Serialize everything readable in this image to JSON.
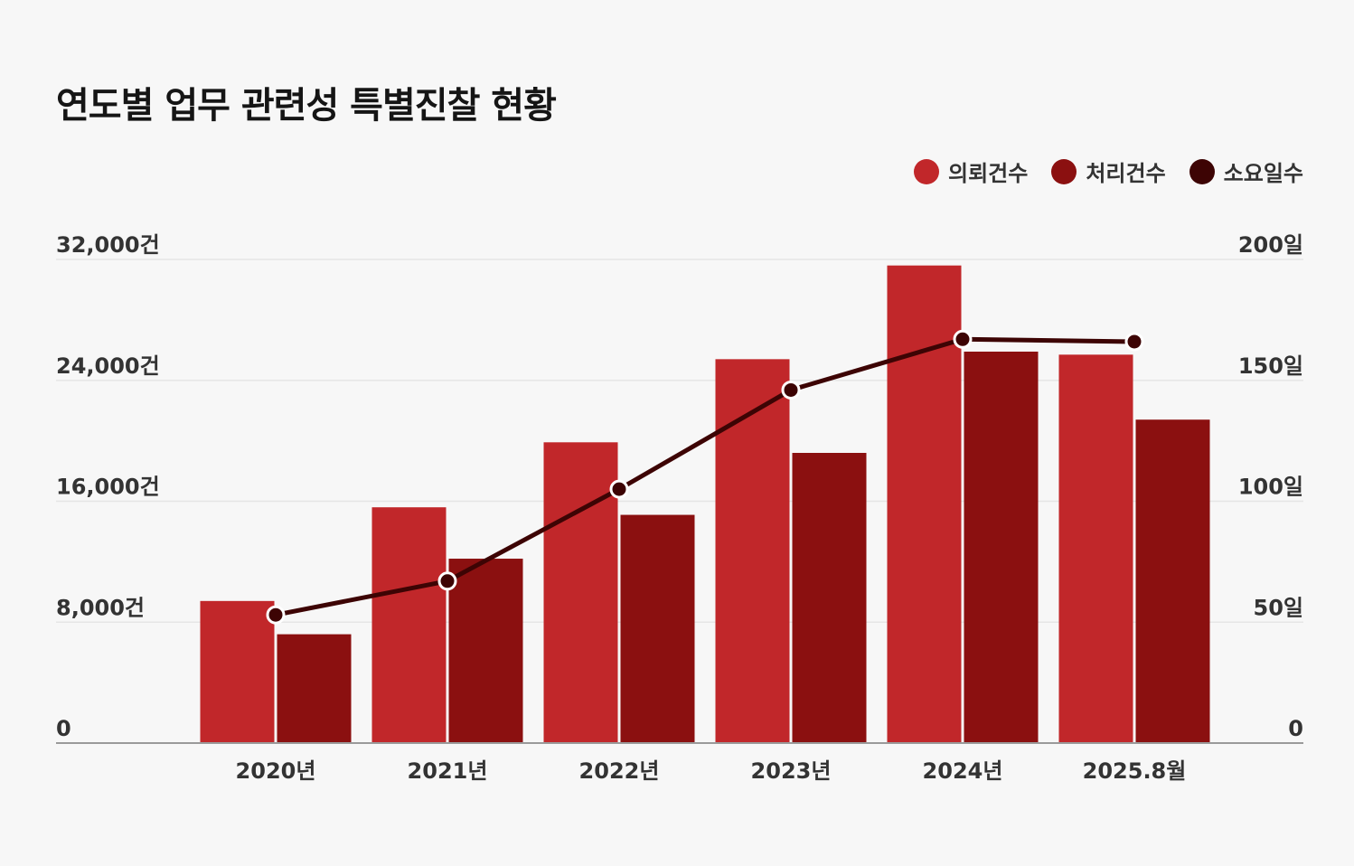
{
  "chart_data": {
    "type": "bar+line",
    "title": "연도별 업무 관련성 특별진찰 현황",
    "categories": [
      "2020년",
      "2021년",
      "2022년",
      "2023년",
      "2024년",
      "2025.8월"
    ],
    "series": [
      {
        "name": "의뢰건수",
        "type": "bar",
        "axis": "left",
        "color": "#c1272a",
        "values": [
          9400,
          15600,
          19900,
          25400,
          31600,
          25700
        ]
      },
      {
        "name": "처리건수",
        "type": "bar",
        "axis": "left",
        "color": "#8b1010",
        "values": [
          7200,
          12200,
          15100,
          19200,
          25900,
          21400
        ]
      },
      {
        "name": "소요일수",
        "type": "line",
        "axis": "right",
        "color": "#3d0404",
        "values": [
          53,
          67,
          105,
          146,
          167,
          166
        ]
      }
    ],
    "left_axis": {
      "ticks": [
        0,
        8000,
        16000,
        24000,
        32000
      ],
      "labels": [
        "0",
        "8,000건",
        "16,000건",
        "24,000건",
        "32,000건"
      ],
      "ylim": [
        0,
        32000
      ]
    },
    "right_axis": {
      "ticks": [
        0,
        50,
        100,
        150,
        200
      ],
      "labels": [
        "0",
        "50일",
        "100일",
        "150일",
        "200일"
      ],
      "ylim": [
        0,
        200
      ]
    },
    "legend_position": "top-right",
    "grid": true
  }
}
